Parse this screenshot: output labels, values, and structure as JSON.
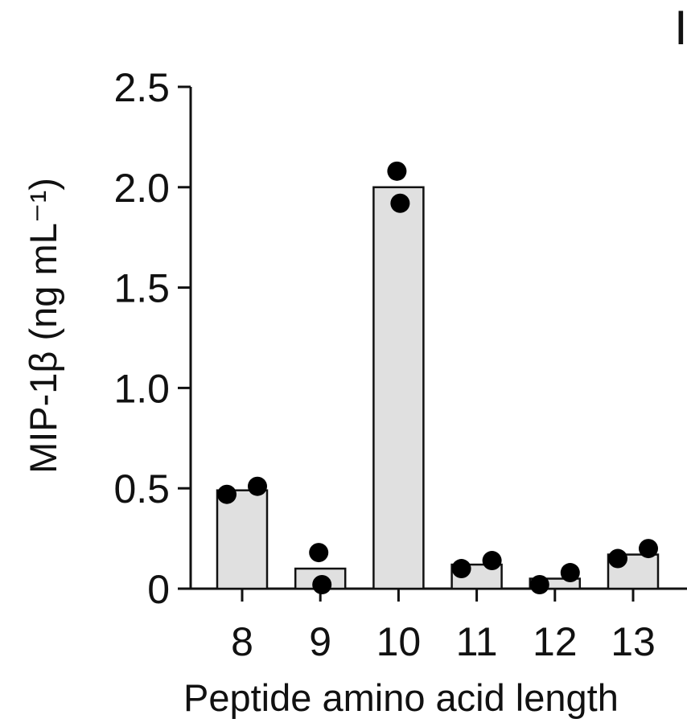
{
  "panel_letter": "I",
  "chart_data": {
    "type": "bar",
    "title": "",
    "xlabel": "Peptide amino acid length",
    "ylabel": "MIP-1β (ng mL⁻¹)",
    "ylim": [
      0,
      2.5
    ],
    "yticks": [
      0,
      0.5,
      1.0,
      1.5,
      2.0,
      2.5
    ],
    "ytick_labels": [
      "0",
      "0.5",
      "1.0",
      "1.5",
      "2.0",
      "2.5"
    ],
    "categories": [
      "8",
      "9",
      "10",
      "11",
      "12",
      "13"
    ],
    "values": [
      0.49,
      0.1,
      2.0,
      0.12,
      0.05,
      0.17
    ],
    "points": [
      [
        0.47,
        0.51
      ],
      [
        0.18,
        0.02
      ],
      [
        2.08,
        1.92
      ],
      [
        0.1,
        0.14
      ],
      [
        0.02,
        0.08
      ],
      [
        0.15,
        0.2
      ]
    ],
    "bar_color": "#e0e0e0",
    "point_color": "#000000",
    "grid": false,
    "legend": "none"
  }
}
